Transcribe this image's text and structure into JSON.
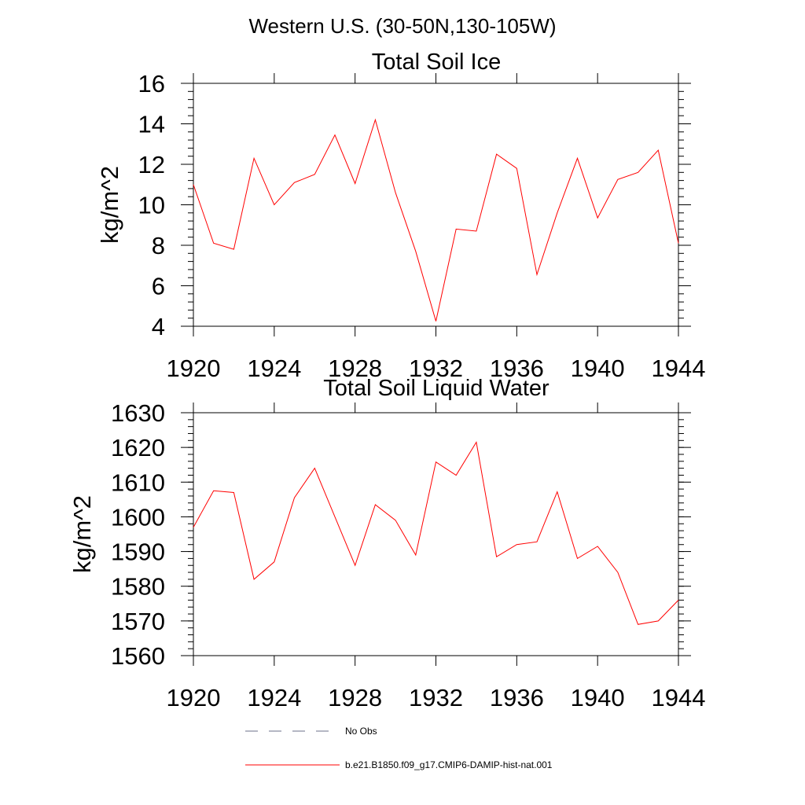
{
  "main_title": "Western U.S. (30-50N,130-105W)",
  "legend": {
    "items": [
      {
        "label": "No Obs",
        "style": "dashed",
        "color": "#6b6f8a"
      },
      {
        "label": "b.e21.B1850.f09_g17.CMIP6-DAMIP-hist-nat.001",
        "style": "solid",
        "color": "#ff0000"
      }
    ]
  },
  "chart_data": [
    {
      "type": "line",
      "title": "Total Soil Ice",
      "xlabel": "",
      "ylabel": "kg/m^2",
      "xlim": [
        1920,
        1944
      ],
      "ylim": [
        4,
        16
      ],
      "x_ticks": [
        1920,
        1924,
        1928,
        1932,
        1936,
        1940,
        1944
      ],
      "x_tick_labels": [
        "1920",
        "1924",
        "1928",
        "1932",
        "1936",
        "1940",
        "1944"
      ],
      "y_ticks": [
        4,
        6,
        8,
        10,
        12,
        14,
        16
      ],
      "y_tick_labels": [
        "4",
        "6",
        "8",
        "10",
        "12",
        "14",
        "16"
      ],
      "grid": false,
      "x": [
        1920,
        1921,
        1922,
        1923,
        1924,
        1925,
        1926,
        1927,
        1928,
        1929,
        1930,
        1931,
        1932,
        1933,
        1934,
        1935,
        1936,
        1937,
        1938,
        1939,
        1940,
        1941,
        1942,
        1943,
        1944
      ],
      "series": [
        {
          "color": "#ff0000",
          "values": [
            11.0,
            8.1,
            7.8,
            12.3,
            10.0,
            11.1,
            11.5,
            13.45,
            11.05,
            14.2,
            10.6,
            7.7,
            4.25,
            8.8,
            8.7,
            12.5,
            11.8,
            6.55,
            9.6,
            12.3,
            9.35,
            11.25,
            11.6,
            12.7,
            8.1
          ]
        }
      ]
    },
    {
      "type": "line",
      "title": "Total Soil Liquid Water",
      "xlabel": "",
      "ylabel": "kg/m^2",
      "xlim": [
        1920,
        1944
      ],
      "ylim": [
        1560,
        1630
      ],
      "x_ticks": [
        1920,
        1924,
        1928,
        1932,
        1936,
        1940,
        1944
      ],
      "x_tick_labels": [
        "1920",
        "1924",
        "1928",
        "1932",
        "1936",
        "1940",
        "1944"
      ],
      "y_ticks": [
        1560,
        1570,
        1580,
        1590,
        1600,
        1610,
        1620,
        1630
      ],
      "y_tick_labels": [
        "1560",
        "1570",
        "1580",
        "1590",
        "1600",
        "1610",
        "1620",
        "1630"
      ],
      "grid": false,
      "x": [
        1920,
        1921,
        1922,
        1923,
        1924,
        1925,
        1926,
        1927,
        1928,
        1929,
        1930,
        1931,
        1932,
        1933,
        1934,
        1935,
        1936,
        1937,
        1938,
        1939,
        1940,
        1941,
        1942,
        1943,
        1944
      ],
      "series": [
        {
          "color": "#ff0000",
          "values": [
            1597,
            1607.5,
            1607,
            1582,
            1587,
            1605.5,
            1614,
            1600,
            1586,
            1603.5,
            1599,
            1589,
            1615.8,
            1612,
            1621.5,
            1588.5,
            1592,
            1592.8,
            1607.2,
            1588,
            1591.5,
            1584,
            1569,
            1570,
            1576
          ]
        }
      ]
    }
  ]
}
